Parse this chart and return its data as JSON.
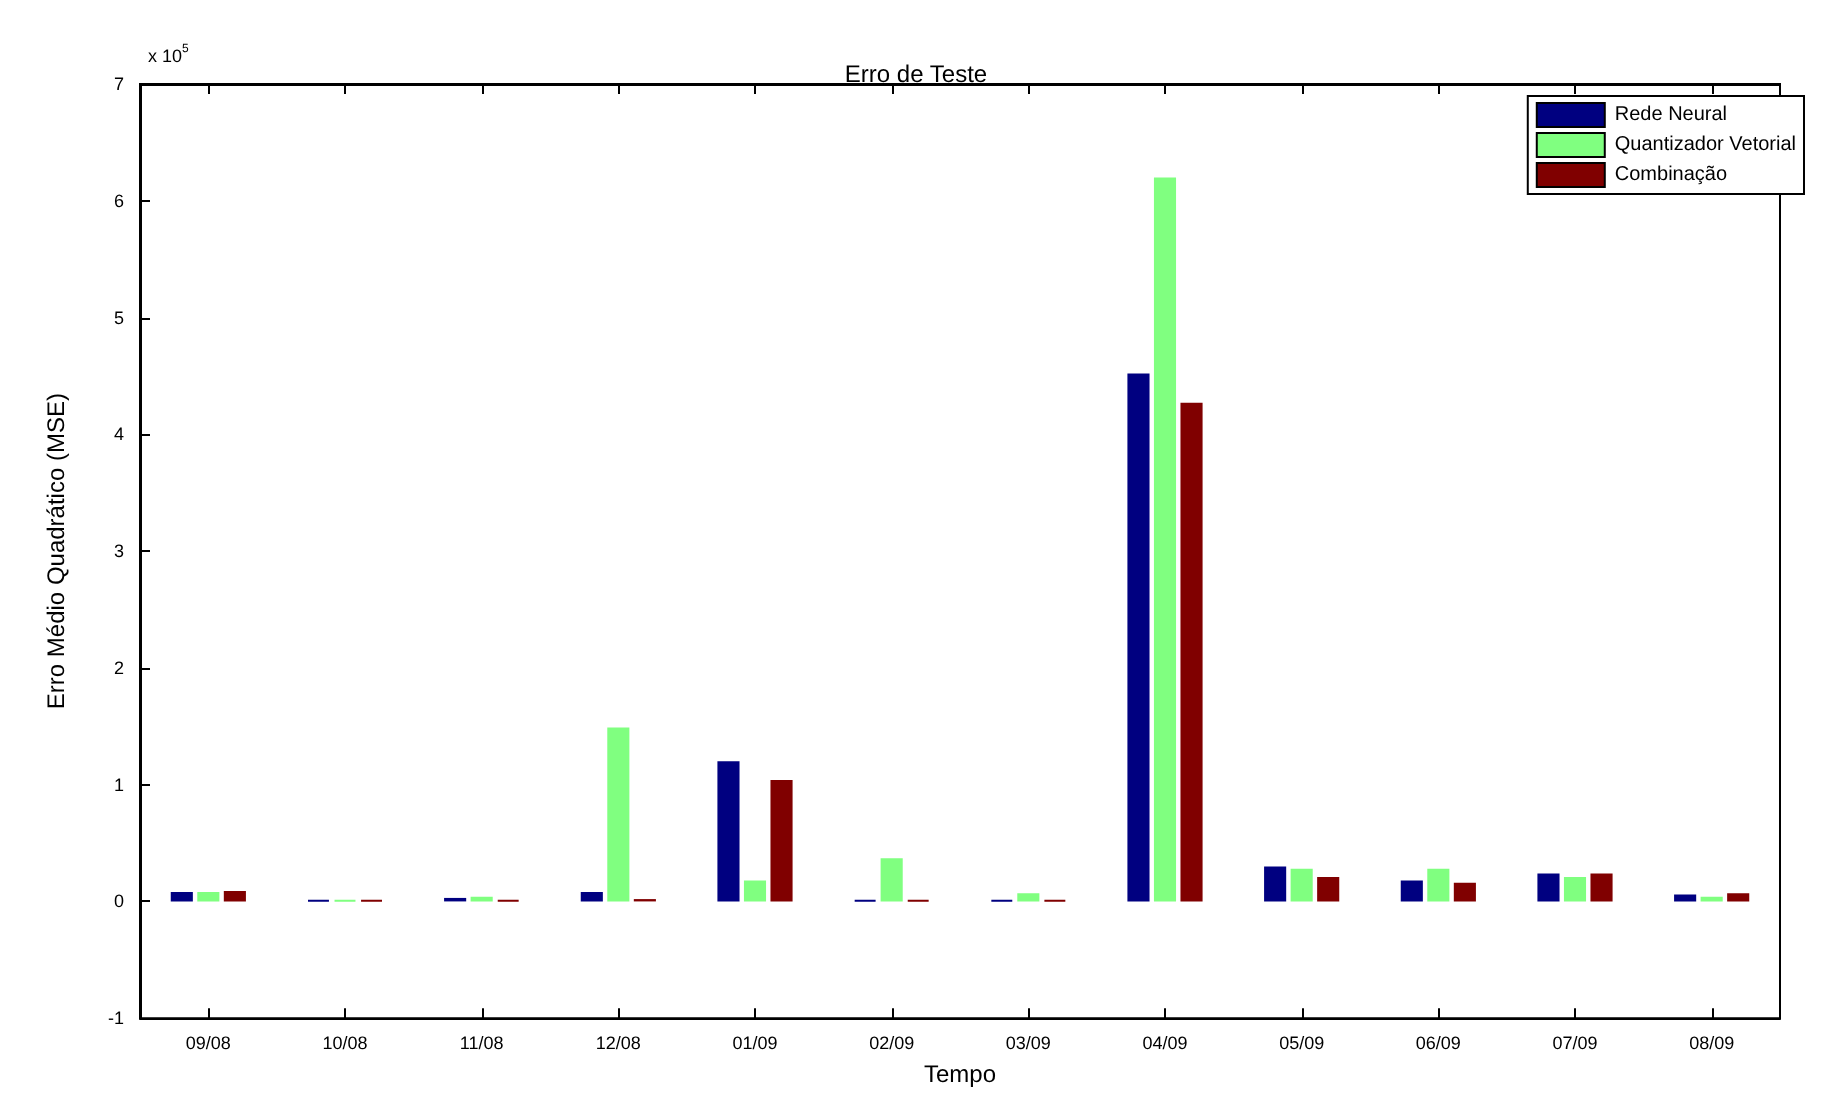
{
  "chart_data": {
    "type": "bar",
    "title": "Erro de Teste",
    "xlabel": "Tempo",
    "ylabel": "Erro Médio Quadrático (MSE)",
    "annotations": [
      "x 10$^{5}$"
    ],
    "categories": [
      "09/08",
      "10/08",
      "11/08",
      "12/08",
      "01/09",
      "02/09",
      "03/09",
      "04/09",
      "05/09",
      "06/09",
      "07/09",
      "08/09"
    ],
    "series": [
      {
        "name": "Rede Neural",
        "color": "#000080",
        "values": [
          0.08,
          0.01,
          0.03,
          0.08,
          1.2,
          0.01,
          0.01,
          4.52,
          0.3,
          0.18,
          0.24,
          0.06
        ]
      },
      {
        "name": "Quantizador Vetorial",
        "color": "#80ff80",
        "values": [
          0.08,
          0.01,
          0.04,
          1.49,
          0.18,
          0.37,
          0.07,
          6.2,
          0.28,
          0.28,
          0.21,
          0.04
        ]
      },
      {
        "name": "Combinação",
        "color": "#800000",
        "values": [
          0.09,
          0.01,
          0.01,
          0.02,
          1.04,
          0.01,
          0.01,
          4.27,
          0.21,
          0.16,
          0.24,
          0.07
        ]
      }
    ],
    "ylim": [
      -1,
      7
    ],
    "yticks": [
      -1,
      0,
      1,
      2,
      3,
      4,
      5,
      6,
      7
    ],
    "grid": false,
    "legend": "top right"
  }
}
